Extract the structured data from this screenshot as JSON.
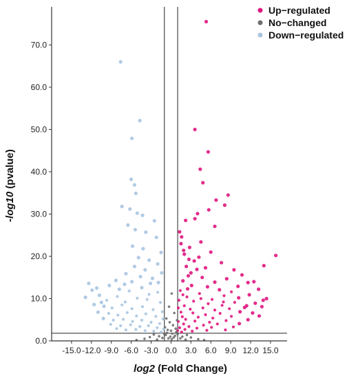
{
  "chart_data": {
    "type": "scatter",
    "title": "",
    "xlabel_italic": "log2",
    "xlabel_rest": " (Fold Change)",
    "ylabel_italic": "-log10",
    "ylabel_rest": " (pvalue)",
    "xlim": [
      -18.0,
      17.5
    ],
    "ylim": [
      0,
      79
    ],
    "x_ticks": [
      -15,
      -12,
      -9,
      -6,
      -3,
      0,
      3,
      6,
      9,
      12,
      15
    ],
    "x_tick_labels": [
      "-15.0",
      "-12.0",
      "-9.0",
      "-6.0",
      "-3.0",
      "0.0",
      "3.0",
      "6.0",
      "9.0",
      "12.0",
      "15.0"
    ],
    "y_ticks": [
      0,
      10,
      20,
      30,
      40,
      50,
      60,
      70
    ],
    "y_tick_labels": [
      "0.0",
      "10.0",
      "20.0",
      "30.0",
      "40.0",
      "50.0",
      "60.0",
      "70.0"
    ],
    "thresholds": {
      "log2fc": [
        -1,
        1
      ],
      "neg_log10_p": 1.8
    },
    "legend_position": "top-right",
    "colors": {
      "up": "#e0167e",
      "no": "#6e6e6e",
      "down": "#a9c4e0"
    },
    "series": [
      {
        "name": "Up−regulated",
        "key": "up",
        "points": [
          [
            5.3,
            75.5
          ],
          [
            3.6,
            50.0
          ],
          [
            5.6,
            44.7
          ],
          [
            4.4,
            40.6
          ],
          [
            4.8,
            37.4
          ],
          [
            6.8,
            33.3
          ],
          [
            8.6,
            34.5
          ],
          [
            8.1,
            32.1
          ],
          [
            5.7,
            31.0
          ],
          [
            4.0,
            30.1
          ],
          [
            3.6,
            28.9
          ],
          [
            2.2,
            28.5
          ],
          [
            6.6,
            27.1
          ],
          [
            1.3,
            25.8
          ],
          [
            1.6,
            24.6
          ],
          [
            4.5,
            23.4
          ],
          [
            2.8,
            22.1
          ],
          [
            1.9,
            21.4
          ],
          [
            6.0,
            21.0
          ],
          [
            15.8,
            20.2
          ],
          [
            14.0,
            17.8
          ],
          [
            2.7,
            19.3
          ],
          [
            3.5,
            18.9
          ],
          [
            7.6,
            18.5
          ],
          [
            9.5,
            16.8
          ],
          [
            2.3,
            17.6
          ],
          [
            3.9,
            16.9
          ],
          [
            5.2,
            17.3
          ],
          [
            10.7,
            15.6
          ],
          [
            12.5,
            14.0
          ],
          [
            11.6,
            13.8
          ],
          [
            8.4,
            14.7
          ],
          [
            6.6,
            13.9
          ],
          [
            4.7,
            15.0
          ],
          [
            2.6,
            15.4
          ],
          [
            1.8,
            14.2
          ],
          [
            10.1,
            12.9
          ],
          [
            13.2,
            12.2
          ],
          [
            9.1,
            11.6
          ],
          [
            7.3,
            12.1
          ],
          [
            5.5,
            12.8
          ],
          [
            3.1,
            13.1
          ],
          [
            1.4,
            11.9
          ],
          [
            11.8,
            10.9
          ],
          [
            10.2,
            10.2
          ],
          [
            14.4,
            10.0
          ],
          [
            8.0,
            10.7
          ],
          [
            6.2,
            9.8
          ],
          [
            4.3,
            11.2
          ],
          [
            2.4,
            10.4
          ],
          [
            1.2,
            9.6
          ],
          [
            12.7,
            8.9
          ],
          [
            9.6,
            9.1
          ],
          [
            7.7,
            8.4
          ],
          [
            5.6,
            8.8
          ],
          [
            3.4,
            9.4
          ],
          [
            2.0,
            8.3
          ],
          [
            1.1,
            7.8
          ],
          [
            13.7,
            8.1
          ],
          [
            11.1,
            7.9
          ],
          [
            8.8,
            7.6
          ],
          [
            6.6,
            7.3
          ],
          [
            4.8,
            7.8
          ],
          [
            2.9,
            7.5
          ],
          [
            1.5,
            6.8
          ],
          [
            12.3,
            6.6
          ],
          [
            10.4,
            6.9
          ],
          [
            7.4,
            6.5
          ],
          [
            5.2,
            6.2
          ],
          [
            3.3,
            6.6
          ],
          [
            1.7,
            5.7
          ],
          [
            13.3,
            5.9
          ],
          [
            9.1,
            5.8
          ],
          [
            6.3,
            5.4
          ],
          [
            4.1,
            5.6
          ],
          [
            2.2,
            5.1
          ],
          [
            1.1,
            4.6
          ],
          [
            11.6,
            5.0
          ],
          [
            8.3,
            4.8
          ],
          [
            5.8,
            4.4
          ],
          [
            3.6,
            4.7
          ],
          [
            1.9,
            4.0
          ],
          [
            10.3,
            4.1
          ],
          [
            7.0,
            4.0
          ],
          [
            4.9,
            3.7
          ],
          [
            2.7,
            3.4
          ],
          [
            1.3,
            3.1
          ],
          [
            9.4,
            3.3
          ],
          [
            6.1,
            3.2
          ],
          [
            3.9,
            3.0
          ],
          [
            2.1,
            2.7
          ],
          [
            1.0,
            2.4
          ],
          [
            8.2,
            2.6
          ],
          [
            5.4,
            2.5
          ],
          [
            3.2,
            2.3
          ],
          [
            1.6,
            2.1
          ],
          [
            13.9,
            9.6
          ],
          [
            11.4,
            8.3
          ],
          [
            7.9,
            9.2
          ],
          [
            4.5,
            10.0
          ],
          [
            2.5,
            12.3
          ],
          [
            1.8,
            10.9
          ],
          [
            3.0,
            16.1
          ],
          [
            4.2,
            19.8
          ],
          [
            2.0,
            20.5
          ],
          [
            1.5,
            23.0
          ]
        ]
      },
      {
        "name": "No−changed",
        "key": "no",
        "points": [
          [
            0.1,
            11.2
          ],
          [
            -0.3,
            8.1
          ],
          [
            0.5,
            6.6
          ],
          [
            -0.7,
            5.3
          ],
          [
            0.9,
            4.9
          ],
          [
            -0.2,
            4.4
          ],
          [
            0.3,
            3.7
          ],
          [
            -0.9,
            3.2
          ],
          [
            0.7,
            2.9
          ],
          [
            -0.5,
            2.6
          ],
          [
            0.0,
            2.4
          ],
          [
            0.8,
            2.1
          ],
          [
            -0.6,
            1.9
          ],
          [
            0.2,
            1.7
          ],
          [
            -0.8,
            1.4
          ],
          [
            0.6,
            1.2
          ],
          [
            -0.1,
            1.0
          ],
          [
            0.4,
            0.8
          ],
          [
            -0.4,
            0.6
          ],
          [
            0.1,
            0.4
          ],
          [
            -2.6,
            1.5
          ],
          [
            2.4,
            1.4
          ],
          [
            -1.8,
            1.1
          ],
          [
            1.7,
            1.0
          ],
          [
            -3.2,
            0.9
          ],
          [
            3.0,
            0.8
          ],
          [
            -1.3,
            0.7
          ],
          [
            1.4,
            0.6
          ],
          [
            -4.0,
            0.5
          ],
          [
            4.1,
            0.4
          ],
          [
            -2.1,
            0.3
          ],
          [
            2.2,
            0.3
          ],
          [
            -5.2,
            0.2
          ],
          [
            5.0,
            0.2
          ],
          [
            -1.0,
            1.6
          ],
          [
            1.0,
            1.6
          ]
        ]
      },
      {
        "name": "Down−regulated",
        "key": "down",
        "points": [
          [
            -7.6,
            66.0
          ],
          [
            -4.7,
            52.1
          ],
          [
            -5.9,
            47.9
          ],
          [
            -6.0,
            38.2
          ],
          [
            -5.5,
            36.9
          ],
          [
            -5.3,
            34.9
          ],
          [
            -7.4,
            31.8
          ],
          [
            -6.2,
            31.2
          ],
          [
            -5.1,
            30.2
          ],
          [
            -4.3,
            29.7
          ],
          [
            -2.5,
            28.4
          ],
          [
            -6.5,
            27.4
          ],
          [
            -5.4,
            26.3
          ],
          [
            -3.8,
            25.7
          ],
          [
            -2.2,
            24.5
          ],
          [
            -5.8,
            22.4
          ],
          [
            -4.2,
            21.8
          ],
          [
            -1.5,
            20.9
          ],
          [
            -4.9,
            19.7
          ],
          [
            -3.3,
            19.1
          ],
          [
            -2.0,
            18.2
          ],
          [
            -5.5,
            17.6
          ],
          [
            -3.9,
            16.8
          ],
          [
            -1.4,
            16.1
          ],
          [
            -6.8,
            15.9
          ],
          [
            -4.6,
            15.2
          ],
          [
            -2.8,
            14.8
          ],
          [
            -8.3,
            14.3
          ],
          [
            -5.9,
            14.0
          ],
          [
            -3.1,
            13.6
          ],
          [
            -12.4,
            13.6
          ],
          [
            -11.2,
            12.5
          ],
          [
            -9.3,
            13.1
          ],
          [
            -7.8,
            12.2
          ],
          [
            -6.3,
            11.8
          ],
          [
            -4.4,
            12.6
          ],
          [
            -2.0,
            11.5
          ],
          [
            -12.9,
            10.3
          ],
          [
            -10.8,
            10.8
          ],
          [
            -9.7,
            9.6
          ],
          [
            -8.1,
            10.5
          ],
          [
            -6.9,
            9.2
          ],
          [
            -5.1,
            10.1
          ],
          [
            -3.6,
            9.8
          ],
          [
            -1.6,
            9.1
          ],
          [
            -11.6,
            8.6
          ],
          [
            -10.1,
            8.2
          ],
          [
            -8.9,
            7.8
          ],
          [
            -7.4,
            8.5
          ],
          [
            -5.9,
            7.6
          ],
          [
            -4.3,
            8.1
          ],
          [
            -2.7,
            7.4
          ],
          [
            -1.3,
            6.9
          ],
          [
            -11.0,
            6.8
          ],
          [
            -9.4,
            6.5
          ],
          [
            -8.0,
            6.1
          ],
          [
            -6.6,
            6.7
          ],
          [
            -5.2,
            5.9
          ],
          [
            -3.8,
            6.4
          ],
          [
            -2.3,
            5.8
          ],
          [
            -1.2,
            5.2
          ],
          [
            -10.2,
            5.3
          ],
          [
            -8.7,
            4.9
          ],
          [
            -7.2,
            5.1
          ],
          [
            -5.8,
            4.6
          ],
          [
            -4.4,
            4.9
          ],
          [
            -3.0,
            4.4
          ],
          [
            -1.7,
            4.1
          ],
          [
            -9.1,
            3.9
          ],
          [
            -7.6,
            3.6
          ],
          [
            -6.1,
            3.8
          ],
          [
            -4.7,
            3.4
          ],
          [
            -3.4,
            3.6
          ],
          [
            -2.1,
            3.1
          ],
          [
            -1.1,
            2.8
          ],
          [
            -8.2,
            2.9
          ],
          [
            -6.8,
            2.6
          ],
          [
            -5.3,
            2.7
          ],
          [
            -3.9,
            2.4
          ],
          [
            -2.6,
            2.3
          ],
          [
            -1.5,
            2.1
          ],
          [
            -11.9,
            12.0
          ],
          [
            -10.5,
            9.1
          ],
          [
            -7.0,
            13.4
          ],
          [
            -3.3,
            11.0
          ],
          [
            -1.9,
            13.8
          ]
        ]
      }
    ]
  }
}
